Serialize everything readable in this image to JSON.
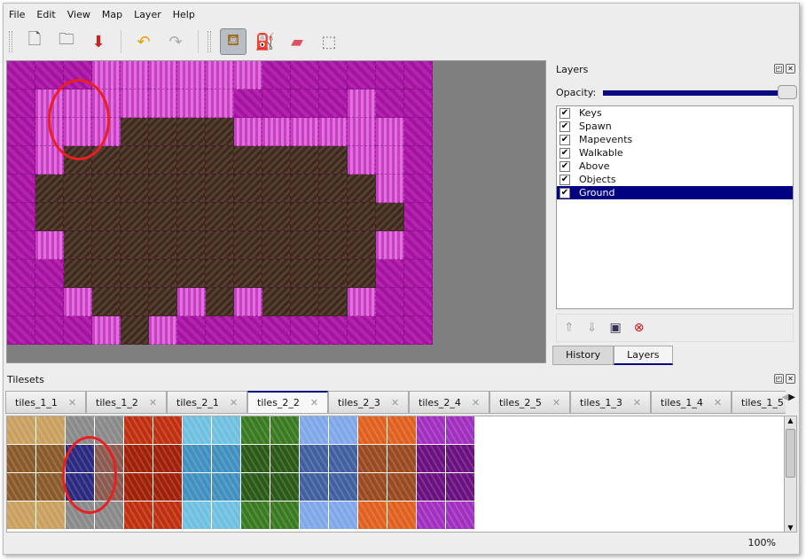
{
  "menu": [
    "File",
    "Edit",
    "View",
    "Map",
    "Layer",
    "Help"
  ],
  "toolbar": [
    {
      "name": "new-icon",
      "glyph": "🗋"
    },
    {
      "name": "open-icon",
      "glyph": "🗀"
    },
    {
      "name": "save-icon",
      "glyph": "⬇"
    },
    {
      "name": "undo-icon",
      "glyph": "↶"
    },
    {
      "name": "redo-icon",
      "glyph": "↷"
    },
    {
      "name": "stamp-brush-icon",
      "glyph": "⛾",
      "active": true
    },
    {
      "name": "bucket-fill-icon",
      "glyph": "⛽"
    },
    {
      "name": "eraser-icon",
      "glyph": "▰"
    },
    {
      "name": "rect-select-icon",
      "glyph": "⬚"
    }
  ],
  "layers_panel": {
    "title": "Layers",
    "opacity_label": "Opacity:",
    "opacity": 100,
    "layers": [
      {
        "name": "Keys",
        "visible": true
      },
      {
        "name": "Spawn",
        "visible": true
      },
      {
        "name": "Mapevents",
        "visible": true
      },
      {
        "name": "Walkable",
        "visible": true
      },
      {
        "name": "Above",
        "visible": true
      },
      {
        "name": "Objects",
        "visible": true
      },
      {
        "name": "Ground",
        "visible": true,
        "selected": true
      }
    ],
    "tabs": [
      "History",
      "Layers"
    ],
    "active_tab": "Layers"
  },
  "tilesets_panel": {
    "title": "Tilesets",
    "tabs": [
      "tiles_1_1",
      "tiles_1_2",
      "tiles_2_1",
      "tiles_2_2",
      "tiles_2_3",
      "tiles_2_4",
      "tiles_2_5",
      "tiles_1_3",
      "tiles_1_4",
      "tiles_1_5"
    ],
    "active_tab": "tiles_2_2"
  },
  "status": {
    "zoom": "100%"
  },
  "colors": {
    "selection": "#000080",
    "highlight_circle": "#e82020",
    "pink": "#a2139e",
    "dirt": "#3a2a20"
  }
}
